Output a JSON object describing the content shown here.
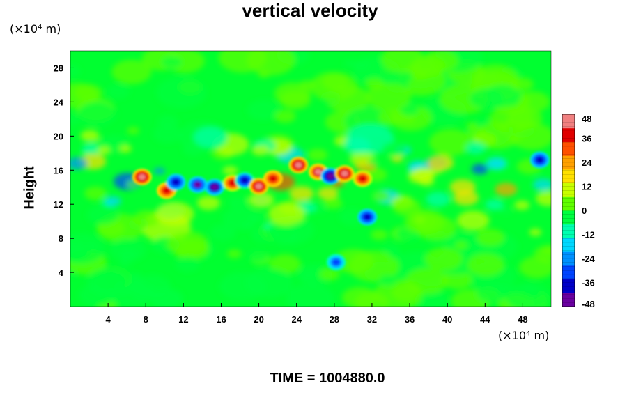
{
  "chart_data": {
    "type": "heatmap",
    "title": "vertical velocity",
    "ylabel": "Height",
    "xlabel": "",
    "x_unit": "(×10⁴ m)",
    "y_unit": "(×10⁴ m)",
    "xlim": [
      0,
      51
    ],
    "ylim": [
      0,
      30
    ],
    "x_ticks": [
      4,
      8,
      12,
      16,
      20,
      24,
      28,
      32,
      36,
      40,
      44,
      48
    ],
    "y_ticks": [
      4,
      8,
      12,
      16,
      20,
      24,
      28
    ],
    "colorbar": {
      "range": [
        -48,
        48
      ],
      "ticks": [
        48,
        36,
        24,
        12,
        0,
        -12,
        -24,
        -36,
        -48
      ],
      "colors": [
        "#6a00a0",
        "#0000c8",
        "#0044ff",
        "#0090ff",
        "#00d8ff",
        "#00ffb0",
        "#00ff40",
        "#60ff00",
        "#c8ff00",
        "#ffe000",
        "#ffa000",
        "#ff5000",
        "#e00000",
        "#f08080"
      ]
    },
    "features": [
      {
        "x": 7.6,
        "y": 15.2,
        "value": 48
      },
      {
        "x": 10.2,
        "y": 13.6,
        "value": 40
      },
      {
        "x": 11.2,
        "y": 14.6,
        "value": -40
      },
      {
        "x": 13.5,
        "y": 14.3,
        "value": -42
      },
      {
        "x": 15.3,
        "y": 14.0,
        "value": -44
      },
      {
        "x": 17.2,
        "y": 14.5,
        "value": 38
      },
      {
        "x": 18.5,
        "y": 14.8,
        "value": -36
      },
      {
        "x": 20.0,
        "y": 14.1,
        "value": 46
      },
      {
        "x": 21.5,
        "y": 15.0,
        "value": 40
      },
      {
        "x": 24.2,
        "y": 16.6,
        "value": 48
      },
      {
        "x": 26.3,
        "y": 15.8,
        "value": 44
      },
      {
        "x": 27.6,
        "y": 15.3,
        "value": -48
      },
      {
        "x": 29.1,
        "y": 15.6,
        "value": 48
      },
      {
        "x": 31.0,
        "y": 15.0,
        "value": 36
      },
      {
        "x": 31.5,
        "y": 10.5,
        "value": -40
      },
      {
        "x": 28.2,
        "y": 5.2,
        "value": -30
      },
      {
        "x": 49.8,
        "y": 17.2,
        "value": -40
      }
    ]
  },
  "time_label": "TIME = 1004880.0"
}
